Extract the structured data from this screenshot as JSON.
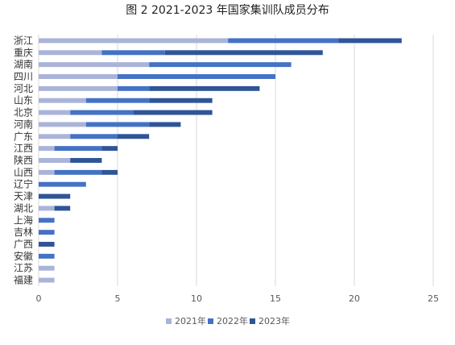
{
  "chart_data": {
    "type": "bar",
    "orientation": "horizontal",
    "stacked": true,
    "title": "图 2 2021-2023 年国家集训队成员分布",
    "categories": [
      "浙江",
      "重庆",
      "湖南",
      "四川",
      "河北",
      "山东",
      "北京",
      "河南",
      "广东",
      "江西",
      "陕西",
      "山西",
      "辽宁",
      "天津",
      "湖北",
      "上海",
      "吉林",
      "广西",
      "安徽",
      "江苏",
      "福建"
    ],
    "series": [
      {
        "name": "2021年",
        "color": "#aab4d8",
        "values": [
          12,
          4,
          7,
          5,
          5,
          3,
          2,
          3,
          2,
          1,
          2,
          1,
          0,
          0,
          1,
          0,
          0,
          0,
          0,
          1,
          1
        ]
      },
      {
        "name": "2022年",
        "color": "#4472c4",
        "values": [
          7,
          4,
          9,
          10,
          2,
          4,
          4,
          4,
          3,
          3,
          0,
          3,
          3,
          0,
          0,
          1,
          1,
          0,
          1,
          0,
          0
        ]
      },
      {
        "name": "2023年",
        "color": "#2f5597",
        "values": [
          4,
          10,
          0,
          0,
          7,
          4,
          5,
          2,
          2,
          1,
          2,
          1,
          0,
          2,
          1,
          0,
          0,
          1,
          0,
          0,
          0
        ]
      }
    ],
    "xlim": [
      0,
      25
    ],
    "xticks": [
      "0",
      "5",
      "10",
      "15",
      "20",
      "25"
    ],
    "grid": "vertical",
    "legend": "bottom"
  }
}
